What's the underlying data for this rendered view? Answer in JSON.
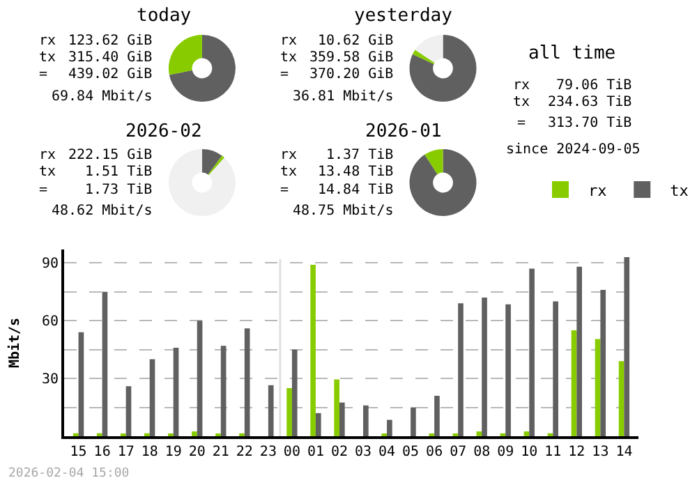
{
  "chart_data": [
    {
      "type": "donut",
      "title": "today",
      "categories": [
        null,
        null,
        null
      ],
      "values": [
        71.84,
        28.16,
        0
      ],
      "colors": [
        "#606060",
        "#88cc00",
        "#f0f0f0"
      ],
      "annotations": [
        "rx",
        "123.62 GiB",
        "tx",
        "315.40 GiB",
        "=",
        "439.02 GiB",
        "69.84 Mbit/s"
      ]
    },
    {
      "type": "donut",
      "title": "yesterday",
      "categories": [
        null,
        null,
        null
      ],
      "values": [
        81.91,
        2.42,
        15.67
      ],
      "colors": [
        "#606060",
        "#88cc00",
        "#f0f0f0"
      ],
      "annotations": [
        "rx",
        "10.62 GiB",
        "tx",
        "359.58 GiB",
        "=",
        "370.20 GiB",
        "36.81 Mbit/s"
      ]
    },
    {
      "type": "donut",
      "title": "2026-02",
      "categories": [
        null,
        null,
        null
      ],
      "values": [
        10.18,
        1.46,
        88.36
      ],
      "colors": [
        "#606060",
        "#88cc00",
        "#f0f0f0"
      ],
      "annotations": [
        "rx",
        "222.15 GiB",
        "tx",
        "1.51 TiB",
        "=",
        "1.73 TiB",
        "48.62 Mbit/s"
      ]
    },
    {
      "type": "donut",
      "title": "2026-01",
      "categories": [
        null,
        null,
        null
      ],
      "values": [
        90.77,
        9.23,
        0
      ],
      "colors": [
        "#606060",
        "#88cc00",
        "#f0f0f0"
      ],
      "annotations": [
        "rx",
        "1.37 TiB",
        "tx",
        "13.48 TiB",
        "=",
        "14.84 TiB",
        "48.75 Mbit/s"
      ]
    },
    {
      "type": "other",
      "title": "all time",
      "annotations": [
        "rx",
        "79.06 TiB",
        "tx",
        "234.63 TiB",
        "=",
        "313.70 TiB",
        "since 2024-09-05"
      ]
    },
    {
      "type": "bar",
      "ylabel": "Mbit/s",
      "categories": [
        "15",
        "16",
        "17",
        "18",
        "19",
        "20",
        "21",
        "22",
        "23",
        "00",
        "01",
        "02",
        "03",
        "04",
        "05",
        "06",
        "07",
        "08",
        "09",
        "10",
        "11",
        "12",
        "13",
        "14"
      ],
      "series": [
        {
          "name": "rx",
          "color": "#88cc00",
          "values": [
            1.5,
            1.5,
            1,
            1.5,
            1,
            2.5,
            1,
            1.5,
            0,
            25,
            89,
            29.5,
            0,
            1,
            0,
            1,
            1,
            2.5,
            1.5,
            2.5,
            1.5,
            55,
            50.5,
            39
          ]
        },
        {
          "name": "tx",
          "color": "#606060",
          "values": [
            54,
            75,
            26,
            40,
            46,
            60,
            47,
            56,
            26.5,
            45,
            12,
            17.5,
            16,
            8.5,
            15,
            21,
            69,
            72,
            68.5,
            87,
            70,
            88,
            76,
            93
          ]
        }
      ],
      "ylim": [
        0,
        97
      ],
      "yticks": [
        {
          "value": 15,
          "label": null
        },
        30,
        {
          "value": 45,
          "label": null
        },
        60,
        {
          "value": 75,
          "label": null
        },
        90
      ],
      "ref_lines": [
        {
          "axis": "x",
          "value": "00",
          "color": "#e0e0e0"
        }
      ],
      "grid": "y",
      "legend": "top right",
      "annotations": [
        "2026-02-04 15:00"
      ]
    }
  ]
}
